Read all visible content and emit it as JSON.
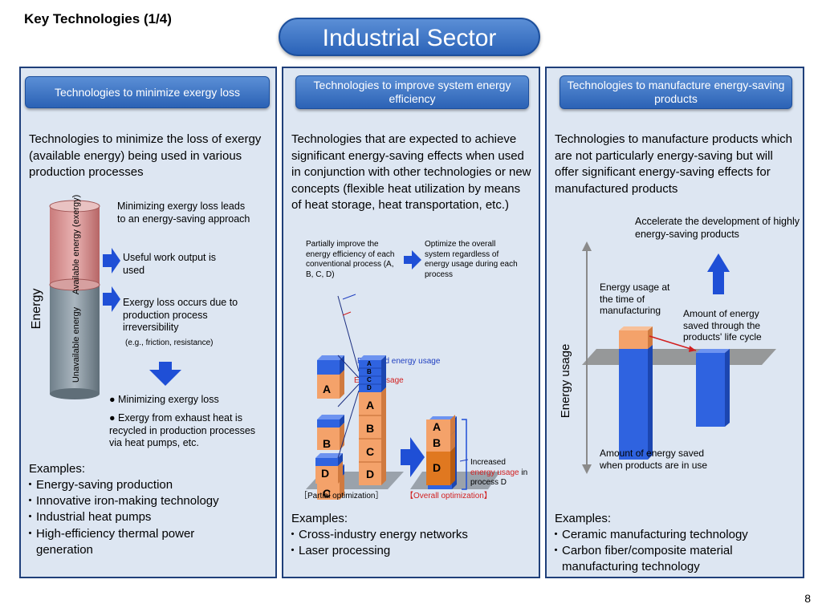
{
  "slide_title": "Key Technologies (1/4)",
  "sector_title": "Industrial Sector",
  "page_number": "8",
  "col1": {
    "header": "Technologies to minimize exergy loss",
    "description": "Technologies to minimize the loss of exergy (available energy) being used in various production processes",
    "diagram": {
      "top_note": "Minimizing exergy loss leads to an energy-saving approach",
      "useful_output": "Useful work output is used",
      "loss_note": "Exergy loss occurs due to production process irreversibility",
      "loss_example": "(e.g., friction, resistance)",
      "energy_label": "Energy",
      "available_label": "Available energy (exergy)",
      "unavailable_label": "Unavailable energy",
      "bullet1": "Minimizing exergy loss",
      "bullet2": "Exergy from exhaust heat is recycled in production processes via heat pumps, etc."
    },
    "examples_title": "Examples:",
    "examples": [
      "・Energy-saving production",
      "・Innovative iron-making technology",
      "・Industrial heat pumps",
      "・High-efficiency thermal power",
      "generation"
    ]
  },
  "col2": {
    "header": "Technologies to improve system energy efficiency",
    "description": "Technologies that are expected to achieve significant energy-saving effects when used in conjunction with other technologies or new concepts (flexible heat utilization by means of heat storage, heat transportation, etc.)",
    "diagram": {
      "partial_note": "Partially improve the energy efficiency of each conventional process (A, B, C, D)",
      "overall_note": "Optimize the overall system regardless of energy usage during each process",
      "reduced_label": "Reduced energy usage",
      "usage_label": "Energy usage",
      "increased_label_1": "Increased",
      "increased_label_2": "energy usage",
      "increased_label_3": "in",
      "increased_label_4": "process D",
      "block_a": "A",
      "block_b": "B",
      "block_c": "C",
      "block_d": "D",
      "partial_caption": "［Partial optimization］",
      "overall_caption": "【Overall optimization】"
    },
    "examples_title": "Examples:",
    "examples": [
      "・Cross-industry energy networks",
      "・Laser processing"
    ]
  },
  "col3": {
    "header": "Technologies to manufacture energy-saving products",
    "description": "Technologies to manufacture products which are not particularly energy-saving but will offer significant energy-saving effects for manufactured products",
    "diagram": {
      "accelerate_note": "Accelerate the development of highly energy-saving products",
      "usage_note": "Energy usage at the time of manufacturing",
      "saved_lifecycle": "Amount of energy saved through the products' life cycle",
      "saved_use": "Amount of energy saved when products are in use",
      "axis_label": "Energy usage"
    },
    "examples_title": "Examples:",
    "examples": [
      "・Ceramic manufacturing technology",
      "・Carbon fiber/composite material",
      "manufacturing technology"
    ]
  }
}
